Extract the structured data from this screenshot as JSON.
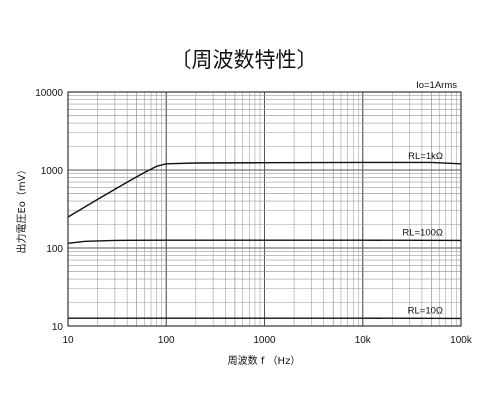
{
  "chart_data": {
    "type": "line",
    "title": "〔周波数特性〕",
    "xlabel": "周波数 f （Hz）",
    "ylabel": "出力電圧Eo（mV）",
    "x_scale": "log",
    "y_scale": "log",
    "xlim": [
      10,
      100000
    ],
    "ylim": [
      10,
      10000
    ],
    "grid": true,
    "x_ticks": [
      {
        "value": 10,
        "label": "10"
      },
      {
        "value": 100,
        "label": "100"
      },
      {
        "value": 1000,
        "label": "1000"
      },
      {
        "value": 10000,
        "label": "10k"
      },
      {
        "value": 100000,
        "label": "100k"
      }
    ],
    "y_ticks": [
      {
        "value": 10,
        "label": "10"
      },
      {
        "value": 100,
        "label": "100"
      },
      {
        "value": 1000,
        "label": "1000"
      },
      {
        "value": 10000,
        "label": "10000"
      }
    ],
    "annotation": "Io=1Arms",
    "series": [
      {
        "name": "RL=1kΩ",
        "x": [
          10,
          20,
          40,
          60,
          80,
          100,
          200,
          1000,
          10000,
          50000,
          100000
        ],
        "y": [
          250,
          420,
          700,
          930,
          1120,
          1200,
          1230,
          1240,
          1250,
          1250,
          1200
        ]
      },
      {
        "name": "RL=100Ω",
        "x": [
          10,
          15,
          30,
          100,
          1000,
          10000,
          100000
        ],
        "y": [
          115,
          122,
          125,
          126,
          126,
          126,
          125
        ]
      },
      {
        "name": "RL=10Ω",
        "x": [
          10,
          100,
          1000,
          10000,
          100000
        ],
        "y": [
          12.6,
          12.6,
          12.6,
          12.6,
          12.5
        ]
      }
    ]
  }
}
